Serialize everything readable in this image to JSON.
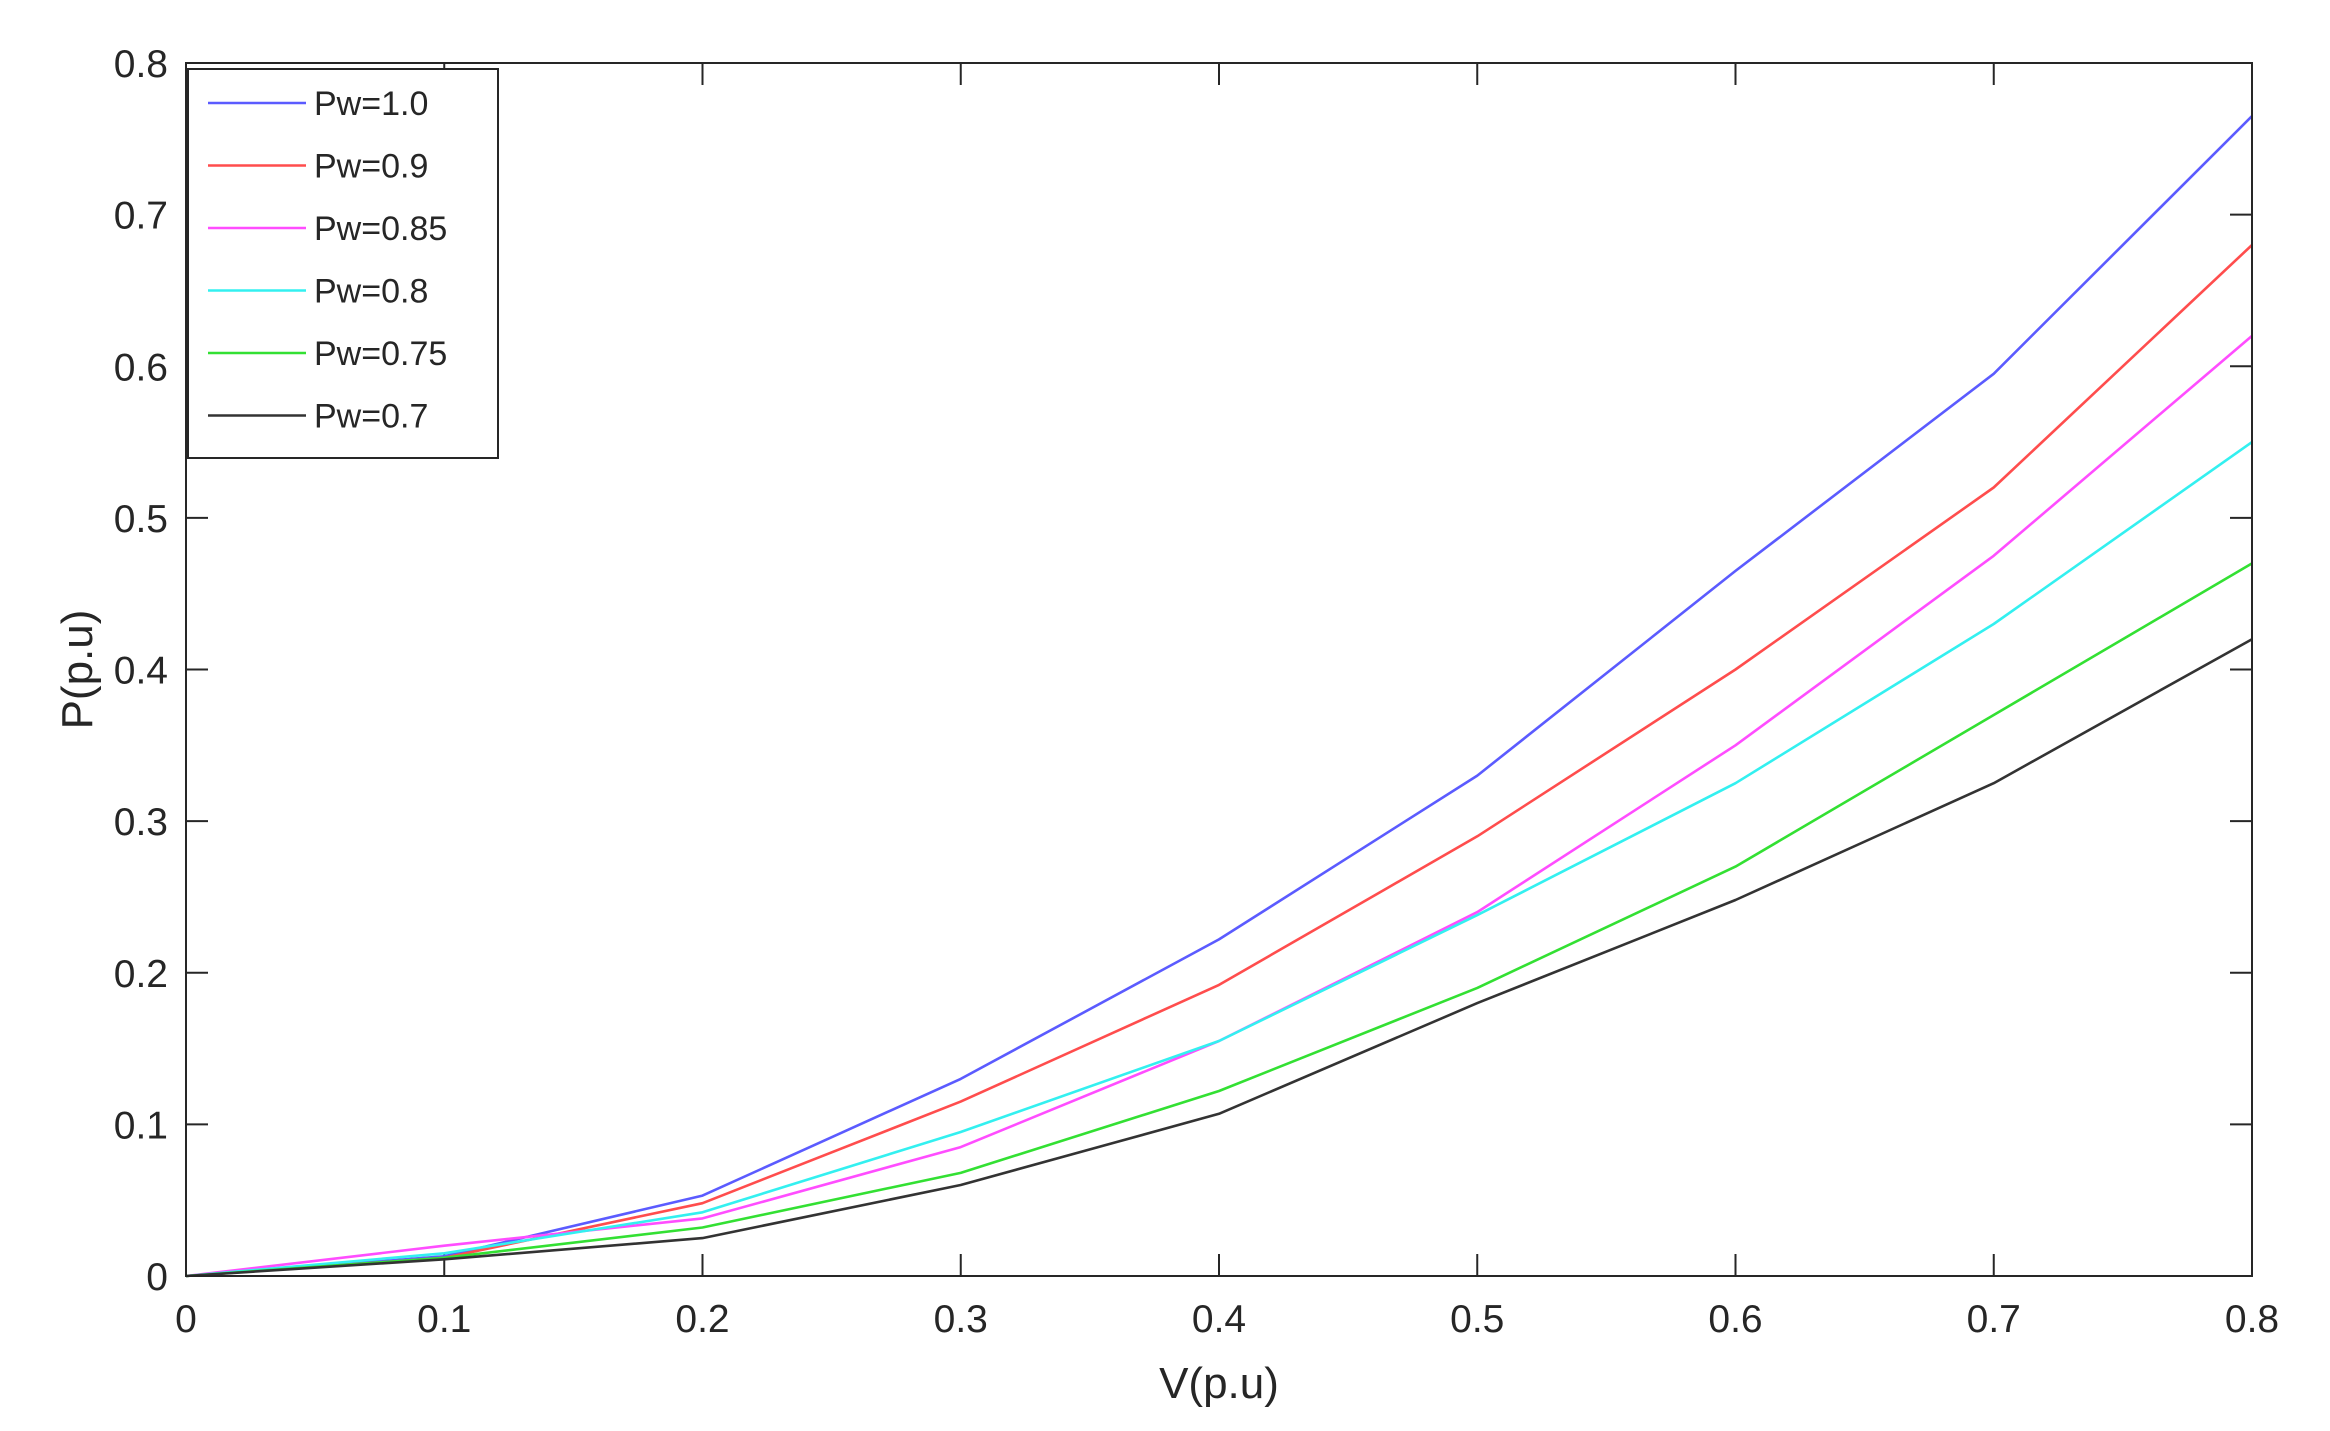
{
  "chart_data": {
    "type": "line",
    "xlabel": "V(p.u)",
    "ylabel": "P(p.u)",
    "xlim": [
      0,
      0.8
    ],
    "ylim": [
      0,
      0.8
    ],
    "xticks": [
      "0",
      "0.1",
      "0.2",
      "0.3",
      "0.4",
      "0.5",
      "0.6",
      "0.7",
      "0.8"
    ],
    "yticks": [
      "0",
      "0.1",
      "0.2",
      "0.3",
      "0.4",
      "0.5",
      "0.6",
      "0.7",
      "0.8"
    ],
    "grid": false,
    "box": true,
    "legend_position": "top-left",
    "x": [
      0,
      0.1,
      0.2,
      0.3,
      0.4,
      0.5,
      0.6,
      0.7,
      0.8
    ],
    "series": [
      {
        "name": "Pw=1.0",
        "color": "#5b5bff",
        "values": [
          0,
          0.013,
          0.053,
          0.13,
          0.222,
          0.33,
          0.465,
          0.595,
          0.765
        ]
      },
      {
        "name": "Pw=0.9",
        "color": "#ff4d4d",
        "values": [
          0,
          0.012,
          0.048,
          0.115,
          0.192,
          0.29,
          0.4,
          0.52,
          0.68
        ]
      },
      {
        "name": "Pw=0.85",
        "color": "#ff4dff",
        "values": [
          0,
          0.02,
          0.038,
          0.085,
          0.155,
          0.24,
          0.35,
          0.475,
          0.62
        ]
      },
      {
        "name": "Pw=0.8",
        "color": "#33f0f0",
        "values": [
          0,
          0.015,
          0.042,
          0.095,
          0.155,
          0.238,
          0.325,
          0.43,
          0.55
        ]
      },
      {
        "name": "Pw=0.75",
        "color": "#33e033",
        "values": [
          0,
          0.012,
          0.032,
          0.068,
          0.122,
          0.19,
          0.27,
          0.37,
          0.47
        ]
      },
      {
        "name": "Pw=0.7",
        "color": "#333333",
        "values": [
          0,
          0.011,
          0.025,
          0.06,
          0.107,
          0.18,
          0.248,
          0.325,
          0.42
        ]
      }
    ]
  }
}
